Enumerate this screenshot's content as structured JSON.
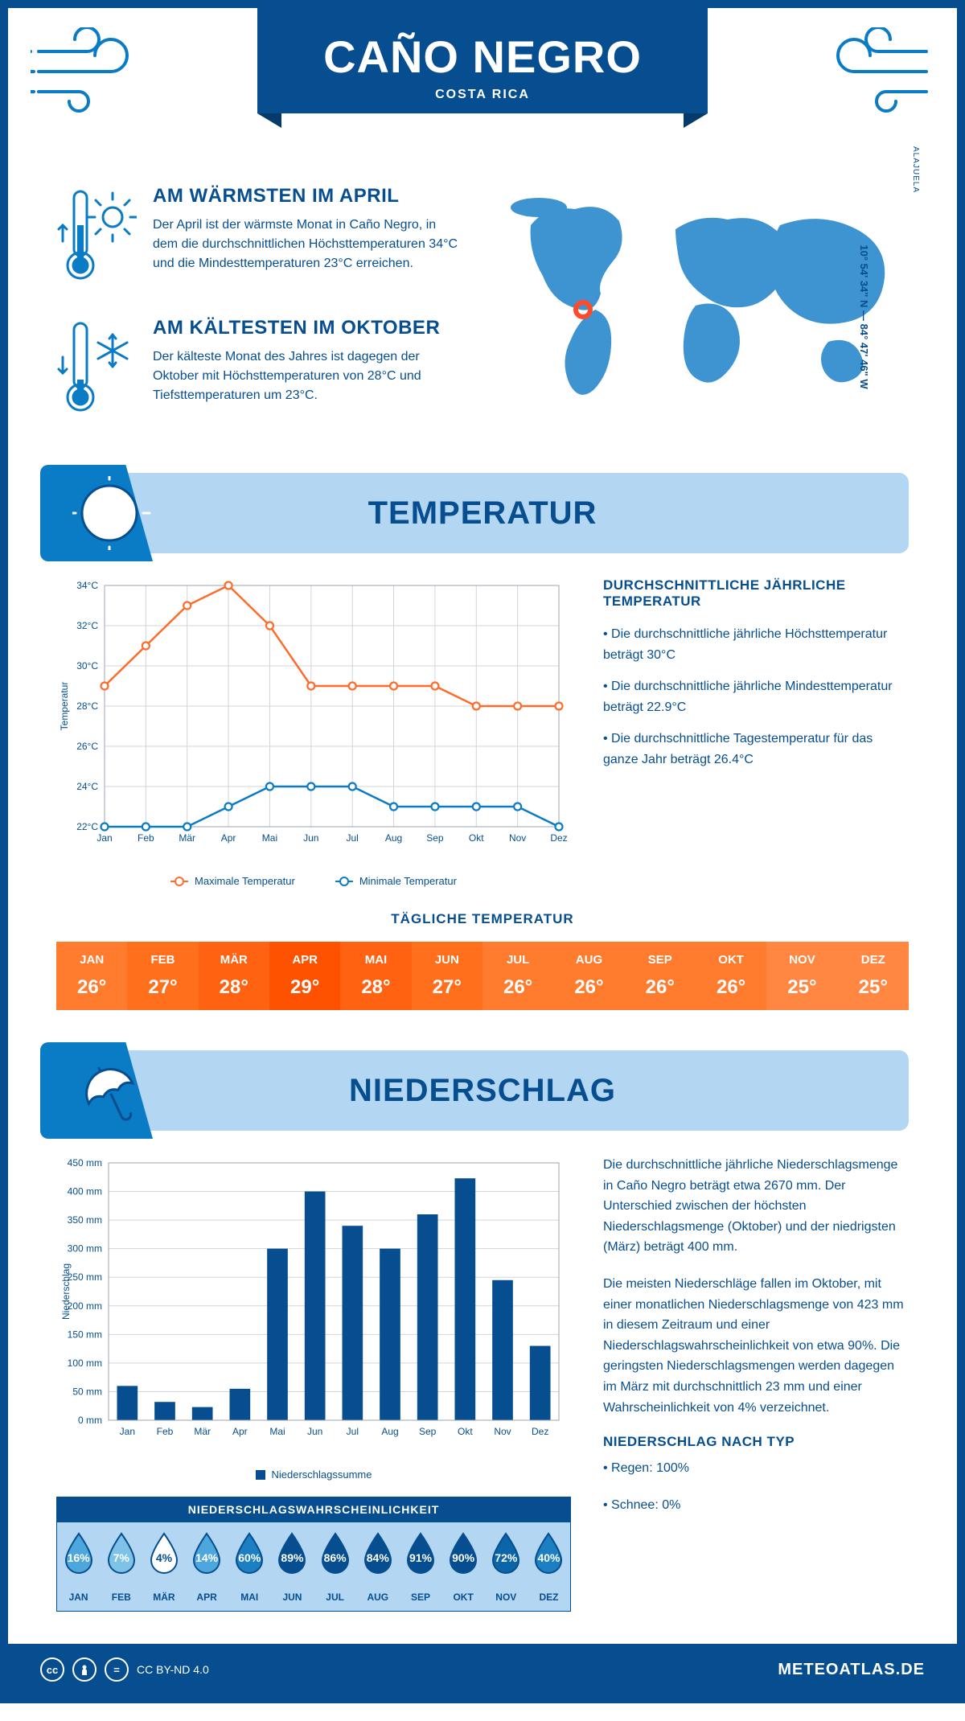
{
  "header": {
    "title": "CAÑO NEGRO",
    "subtitle": "COSTA RICA"
  },
  "coords": "10° 54' 34\" N — 84° 47' 46\" W",
  "region": "ALAJUELA",
  "intro": {
    "warm": {
      "title": "AM WÄRMSTEN IM APRIL",
      "text": "Der April ist der wärmste Monat in Caño Negro, in dem die durchschnittlichen Höchsttemperaturen 34°C und die Mindesttemperaturen 23°C erreichen."
    },
    "cold": {
      "title": "AM KÄLTESTEN IM OKTOBER",
      "text": "Der kälteste Monat des Jahres ist dagegen der Oktober mit Höchsttemperaturen von 28°C und Tiefsttemperaturen um 23°C."
    }
  },
  "temp_section": {
    "title": "TEMPERATUR"
  },
  "temp_chart": {
    "months": [
      "Jan",
      "Feb",
      "Mär",
      "Apr",
      "Mai",
      "Jun",
      "Jul",
      "Aug",
      "Sep",
      "Okt",
      "Nov",
      "Dez"
    ],
    "max": [
      29,
      31,
      33,
      34,
      32,
      29,
      29,
      29,
      29,
      28,
      28,
      28
    ],
    "min": [
      22,
      22,
      22,
      23,
      24,
      24,
      24,
      23,
      23,
      23,
      23,
      22
    ],
    "ylabel": "Temperatur",
    "ylim": [
      22,
      34
    ],
    "ytick": 2,
    "max_color": "#ff6b2b",
    "min_color": "#0a7bc5",
    "grid_color": "#d0d5db",
    "font_size": 12,
    "line_width": 2.5,
    "marker_r": 4.5,
    "legend_max": "Maximale Temperatur",
    "legend_min": "Minimale Temperatur"
  },
  "temp_text": {
    "title": "DURCHSCHNITTLICHE JÄHRLICHE TEMPERATUR",
    "b1": "• Die durchschnittliche jährliche Höchsttemperatur beträgt 30°C",
    "b2": "• Die durchschnittliche jährliche Mindesttemperatur beträgt 22.9°C",
    "b3": "• Die durchschnittliche Tagestemperatur für das ganze Jahr beträgt 26.4°C"
  },
  "daily": {
    "title": "TÄGLICHE TEMPERATUR",
    "months": [
      "JAN",
      "FEB",
      "MÄR",
      "APR",
      "MAI",
      "JUN",
      "JUL",
      "AUG",
      "SEP",
      "OKT",
      "NOV",
      "DEZ"
    ],
    "values": [
      "26°",
      "27°",
      "28°",
      "29°",
      "28°",
      "27°",
      "26°",
      "26°",
      "26°",
      "26°",
      "25°",
      "25°"
    ],
    "colors": [
      "#ff7b2e",
      "#ff6f1c",
      "#ff6210",
      "#ff5200",
      "#ff6210",
      "#ff6f1c",
      "#ff7b2e",
      "#ff7b2e",
      "#ff7b2e",
      "#ff7b2e",
      "#ff8742",
      "#ff8742"
    ]
  },
  "precip_section": {
    "title": "NIEDERSCHLAG"
  },
  "precip_chart": {
    "months": [
      "Jan",
      "Feb",
      "Mär",
      "Apr",
      "Mai",
      "Jun",
      "Jul",
      "Aug",
      "Sep",
      "Okt",
      "Nov",
      "Dez"
    ],
    "values": [
      60,
      32,
      23,
      55,
      300,
      400,
      340,
      300,
      360,
      423,
      245,
      130
    ],
    "ylabel": "Niederschlag",
    "ylim": [
      0,
      450
    ],
    "ytick": 50,
    "bar_color": "#064e8f",
    "grid_color": "#d0d5db",
    "bar_width": 0.55,
    "font_size": 12,
    "legend": "Niederschlagssumme"
  },
  "precip_text": {
    "p1": "Die durchschnittliche jährliche Niederschlagsmenge in Caño Negro beträgt etwa 2670 mm. Der Unterschied zwischen der höchsten Niederschlagsmenge (Oktober) und der niedrigsten (März) beträgt 400 mm.",
    "p2": "Die meisten Niederschläge fallen im Oktober, mit einer monatlichen Niederschlagsmenge von 423 mm in diesem Zeitraum und einer Niederschlagswahrscheinlichkeit von etwa 90%. Die geringsten Niederschlagsmengen werden dagegen im März mit durchschnittlich 23 mm und einer Wahrscheinlichkeit von 4% verzeichnet.",
    "type_title": "NIEDERSCHLAG NACH TYP",
    "t1": "• Regen: 100%",
    "t2": "• Schnee: 0%"
  },
  "prob": {
    "title": "NIEDERSCHLAGSWAHRSCHEINLICHKEIT",
    "months": [
      "JAN",
      "FEB",
      "MÄR",
      "APR",
      "MAI",
      "JUN",
      "JUL",
      "AUG",
      "SEP",
      "OKT",
      "NOV",
      "DEZ"
    ],
    "values": [
      "16%",
      "7%",
      "4%",
      "14%",
      "60%",
      "89%",
      "86%",
      "84%",
      "91%",
      "90%",
      "72%",
      "40%"
    ],
    "fills": [
      "#4ea7dc",
      "#7fc2e8",
      "#ffffff",
      "#4ea7dc",
      "#1b7fc1",
      "#064e8f",
      "#064e8f",
      "#064e8f",
      "#064e8f",
      "#064e8f",
      "#0b65a8",
      "#1b7fc1"
    ],
    "text_colors": [
      "#fff",
      "#fff",
      "#064e8f",
      "#fff",
      "#fff",
      "#fff",
      "#fff",
      "#fff",
      "#fff",
      "#fff",
      "#fff",
      "#fff"
    ]
  },
  "footer": {
    "license": "CC BY-ND 4.0",
    "brand": "METEOATLAS.DE"
  }
}
